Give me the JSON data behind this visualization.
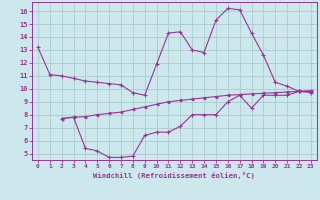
{
  "xlabel": "Windchill (Refroidissement éolien,°C)",
  "bg_color": "#cce8ec",
  "grid_color": "#aacccc",
  "line_color": "#993399",
  "xlim": [
    -0.5,
    23.5
  ],
  "ylim": [
    4.5,
    16.7
  ],
  "xticks": [
    0,
    1,
    2,
    3,
    4,
    5,
    6,
    7,
    8,
    9,
    10,
    11,
    12,
    13,
    14,
    15,
    16,
    17,
    18,
    19,
    20,
    21,
    22,
    23
  ],
  "yticks": [
    5,
    6,
    7,
    8,
    9,
    10,
    11,
    12,
    13,
    14,
    15,
    16
  ],
  "line1_x": [
    0,
    1,
    2,
    3,
    4,
    5,
    6,
    7,
    8,
    9,
    10,
    11,
    12,
    13,
    14,
    15,
    16,
    17,
    18,
    19,
    20,
    21,
    22,
    23
  ],
  "line1_y": [
    13.2,
    11.1,
    11.0,
    10.8,
    10.6,
    10.5,
    10.4,
    10.3,
    9.7,
    9.5,
    11.9,
    14.3,
    14.4,
    13.0,
    12.8,
    15.3,
    16.2,
    16.1,
    14.3,
    12.6,
    10.5,
    10.2,
    9.8,
    9.7
  ],
  "line2_x": [
    2,
    3,
    4,
    5,
    6,
    7,
    8,
    9,
    10,
    11,
    12,
    13,
    14,
    15,
    16,
    17,
    18,
    19,
    20,
    21,
    22,
    23
  ],
  "line2_y": [
    7.7,
    7.8,
    7.85,
    8.0,
    8.1,
    8.2,
    8.4,
    8.6,
    8.8,
    9.0,
    9.1,
    9.2,
    9.3,
    9.4,
    9.5,
    9.55,
    9.6,
    9.65,
    9.7,
    9.75,
    9.8,
    9.85
  ],
  "line3_x": [
    2,
    3,
    4,
    5,
    6,
    7,
    8,
    9,
    10,
    11,
    12,
    13,
    14,
    15,
    16,
    17,
    18,
    19,
    20,
    21,
    22,
    23
  ],
  "line3_y": [
    7.7,
    7.8,
    5.4,
    5.2,
    4.7,
    4.7,
    4.8,
    6.4,
    6.65,
    6.65,
    7.1,
    8.0,
    8.0,
    8.0,
    9.0,
    9.5,
    8.5,
    9.5,
    9.5,
    9.5,
    9.8,
    9.8
  ]
}
